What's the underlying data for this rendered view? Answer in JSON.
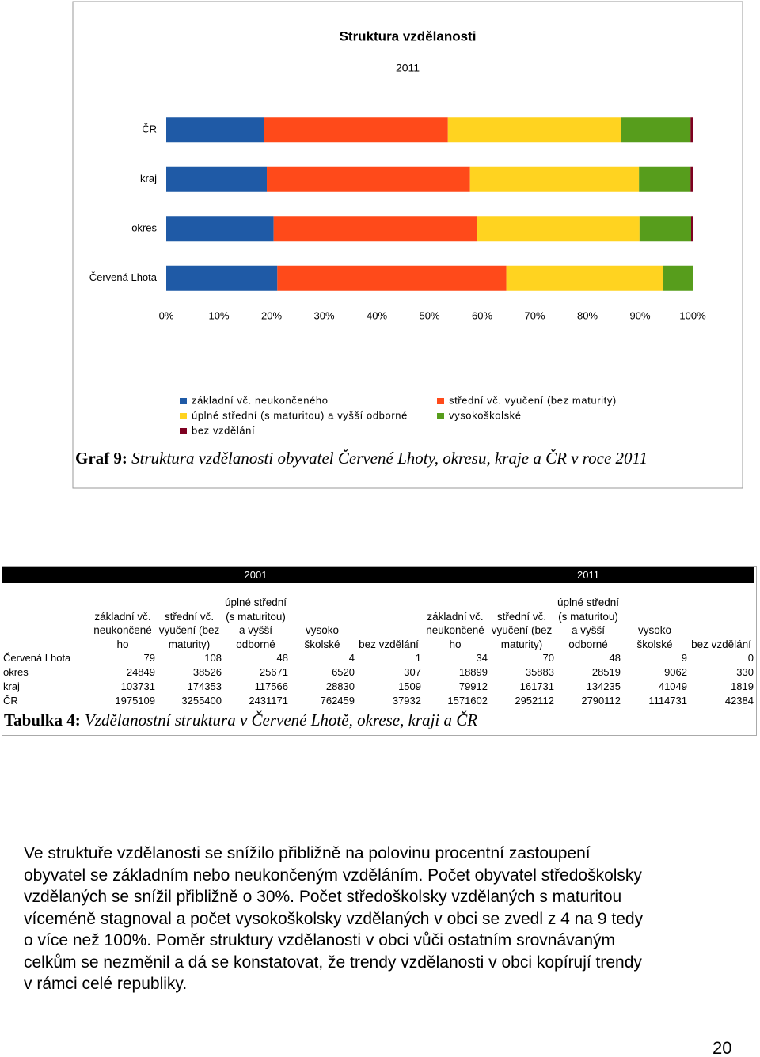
{
  "chart_data": {
    "type": "bar",
    "orientation": "horizontal",
    "stacked": true,
    "title": "Struktura vzdělanosti",
    "subtitle": "2011",
    "categories": [
      "ČR",
      "kraj",
      "okres",
      "Červená Lhota"
    ],
    "series": [
      {
        "name": "základní vč. neukončeného",
        "color": "#1f5aa6",
        "values": [
          18.6,
          19.1,
          20.4,
          21.1
        ]
      },
      {
        "name": "střední vč. vyučení (bez maturity)",
        "color": "#ff4a1a",
        "values": [
          34.9,
          38.6,
          38.7,
          43.5
        ]
      },
      {
        "name": "úplné střední (s maturitou) a vyšší odborné",
        "color": "#ffd320",
        "values": [
          32.9,
          32.1,
          30.8,
          29.8
        ]
      },
      {
        "name": "vysokoškolské",
        "color": "#579d1c",
        "values": [
          13.2,
          9.8,
          9.8,
          5.6
        ]
      },
      {
        "name": "bez vzdělání",
        "color": "#7e0021",
        "values": [
          0.5,
          0.4,
          0.4,
          0
        ]
      }
    ],
    "xlim": [
      0,
      100
    ],
    "xticks": [
      {
        "value": 0,
        "label": "0%"
      },
      {
        "value": 10,
        "label": "10%"
      },
      {
        "value": 20,
        "label": "20%"
      },
      {
        "value": 30,
        "label": "30%"
      },
      {
        "value": 40,
        "label": "40%"
      },
      {
        "value": 50,
        "label": "50%"
      },
      {
        "value": 60,
        "label": "60%"
      },
      {
        "value": 70,
        "label": "70%"
      },
      {
        "value": 80,
        "label": "80%"
      },
      {
        "value": 90,
        "label": "90%"
      },
      {
        "value": 100,
        "label": "100%"
      }
    ],
    "grid": false
  },
  "figure_caption": {
    "label": "Graf 9:",
    "text": "Struktura vzdělanosti obyvatel Červené Lhoty, okresu, kraje a ČR v roce 2011"
  },
  "table": {
    "groups": [
      {
        "year": "2001",
        "columns": [
          "základní vč.\nneukončené\nho",
          "střední vč.\nvyučení (bez\nmaturity)",
          "úplné střední\n(s maturitou)\na vyšší\nodborné",
          "vysoko\nškolské",
          "bez vzdělání"
        ]
      },
      {
        "year": "2011",
        "columns": [
          "základní vč.\nneukončené\nho",
          "střední vč.\nvyučení (bez\nmaturity)",
          "úplné střední\n(s maturitou)\na vyšší\nodborné",
          "vysoko\nškolské",
          "bez vzdělání"
        ]
      }
    ],
    "rows": [
      {
        "label": "Červená Lhota",
        "values": [
          79,
          108,
          48,
          4,
          1,
          34,
          70,
          48,
          9,
          0
        ]
      },
      {
        "label": "okres",
        "values": [
          24849,
          38526,
          25671,
          6520,
          307,
          18899,
          35883,
          28519,
          9062,
          330
        ]
      },
      {
        "label": "kraj",
        "values": [
          103731,
          174353,
          117566,
          28830,
          1509,
          79912,
          161731,
          134235,
          41049,
          1819
        ]
      },
      {
        "label": "ČR",
        "values": [
          1975109,
          3255400,
          2431171,
          762459,
          37932,
          1571602,
          2952112,
          2790112,
          1114731,
          42384
        ]
      }
    ]
  },
  "table_caption": {
    "label": "Tabulka 4:",
    "text": "Vzdělanostní struktura v Červené Lhotě, okrese, kraji a ČR"
  },
  "paragraph": {
    "lines": [
      "Ve struktuře vzdělanosti se snížilo přibližně na polovinu procentní zastoupení",
      "obyvatel se základním nebo neukončeným vzděláním. Počet obyvatel středoškolsky",
      "vzdělaných se snížil přibližně o 30%. Počet středoškolsky vzdělaných s maturitou",
      "víceméně stagnoval a počet vysokoškolsky vzdělaných v obci se zvedl z 4 na 9 tedy",
      "o více než 100%. Poměr struktury vzdělanosti v obci vůči ostatním srovnávaným",
      "celkům se nezměnil a dá se konstatovat, že trendy vzdělanosti v obci kopírují trendy",
      "v rámci celé republiky."
    ]
  },
  "page_number": "20"
}
